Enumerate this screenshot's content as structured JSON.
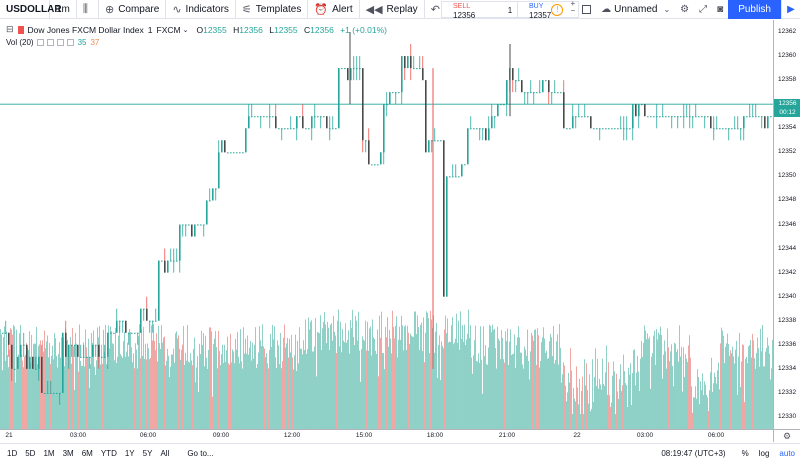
{
  "toolbar": {
    "symbol": "USDOLLAR",
    "interval": "1m",
    "compare_label": "Compare",
    "indicators_label": "Indicators",
    "templates_label": "Templates",
    "alert_label": "Alert",
    "replay_label": "Replay",
    "sell_label": "SELL",
    "sell_value": "12356",
    "spread": "1",
    "buy_label": "BUY",
    "buy_value": "12357",
    "layout_name": "Unnamed",
    "publish_label": "Publish"
  },
  "legend": {
    "title": "Dow Jones FXCM Dollar Index",
    "interval": "1",
    "exchange": "FXCM",
    "open_label": "O",
    "open": "12355",
    "high_label": "H",
    "high": "12356",
    "low_label": "L",
    "low": "12355",
    "close_label": "C",
    "close": "12356",
    "change": "+1 (+0.01%)",
    "vol_label": "Vol (20)",
    "vol_value_1": "35",
    "vol_value_2": "37"
  },
  "price_axis": {
    "ticks": [
      "12362",
      "12360",
      "12358",
      "12356",
      "12354",
      "12352",
      "12350",
      "12348",
      "12346",
      "12344",
      "12342",
      "12340",
      "12338",
      "12336",
      "12334",
      "12332",
      "12330"
    ],
    "last_price": "12356",
    "countdown": "00:12"
  },
  "time_axis": {
    "ticks": [
      "21",
      "03:00",
      "06:00",
      "09:00",
      "12:00",
      "15:00",
      "18:00",
      "21:00",
      "22",
      "03:00",
      "06:00"
    ]
  },
  "bottom_bar": {
    "ranges": [
      "1D",
      "5D",
      "1M",
      "3M",
      "6M",
      "YTD",
      "1Y",
      "5Y",
      "All"
    ],
    "goto_label": "Go to...",
    "clock": "08:19:47 (UTC+3)",
    "percent_label": "%",
    "log_label": "log",
    "auto_label": "auto"
  },
  "colors": {
    "up": "#26a69a",
    "down": "#ef5350",
    "candle_body": "#4a4a4a",
    "volume_up": "#8fd0c7",
    "volume_down": "#f0a8a6",
    "accent": "#2962ff"
  },
  "chart_data": {
    "type": "candlestick",
    "ylim": [
      12329,
      12363
    ],
    "last_price": 12356,
    "segments": [
      {
        "from": 0,
        "to": 8,
        "price": 12337
      },
      {
        "from": 8,
        "to": 25,
        "price": 12335
      },
      {
        "from": 25,
        "to": 40,
        "price": 12334
      },
      {
        "from": 40,
        "to": 60,
        "price": 12332
      },
      {
        "from": 60,
        "to": 75,
        "price": 12336
      },
      {
        "from": 75,
        "to": 105,
        "price": 12335
      },
      {
        "from": 105,
        "to": 118,
        "price": 12338
      },
      {
        "from": 118,
        "to": 140,
        "price": 12337
      },
      {
        "from": 140,
        "to": 152,
        "price": 12339
      },
      {
        "from": 152,
        "to": 170,
        "price": 12343
      },
      {
        "from": 170,
        "to": 195,
        "price": 12346
      },
      {
        "from": 195,
        "to": 215,
        "price": 12349
      },
      {
        "from": 215,
        "to": 240,
        "price": 12352
      },
      {
        "from": 240,
        "to": 275,
        "price": 12355
      },
      {
        "from": 275,
        "to": 300,
        "price": 12354
      },
      {
        "from": 300,
        "to": 330,
        "price": 12354
      },
      {
        "from": 330,
        "to": 352,
        "price": 12359
      },
      {
        "from": 352,
        "to": 368,
        "price": 12353
      },
      {
        "from": 368,
        "to": 382,
        "price": 12351
      },
      {
        "from": 382,
        "to": 400,
        "price": 12356
      },
      {
        "from": 400,
        "to": 425,
        "price": 12359
      },
      {
        "from": 425,
        "to": 433,
        "price": 12352
      },
      {
        "from": 433,
        "to": 445,
        "price": 12340
      },
      {
        "from": 445,
        "to": 465,
        "price": 12350
      },
      {
        "from": 465,
        "to": 490,
        "price": 12354
      },
      {
        "from": 490,
        "to": 505,
        "price": 12356
      },
      {
        "from": 505,
        "to": 520,
        "price": 12359
      },
      {
        "from": 520,
        "to": 560,
        "price": 12357
      },
      {
        "from": 560,
        "to": 620,
        "price": 12354
      },
      {
        "from": 620,
        "to": 700,
        "price": 12355
      },
      {
        "from": 700,
        "to": 740,
        "price": 12354
      },
      {
        "from": 740,
        "to": 773,
        "price": 12355
      }
    ]
  }
}
